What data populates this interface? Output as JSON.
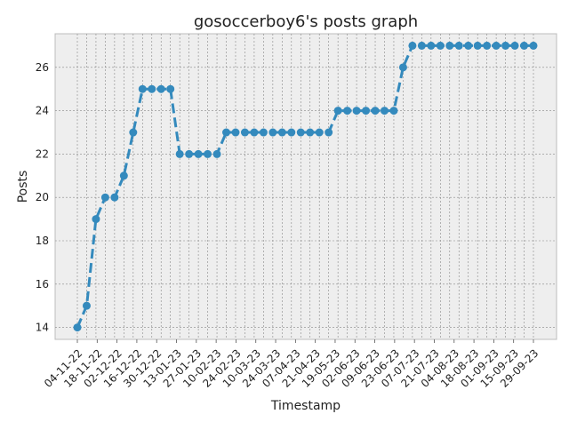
{
  "chart_data": {
    "type": "line",
    "title": "gosoccerboy6's posts graph",
    "xlabel": "Timestamp",
    "ylabel": "Posts",
    "ylim": [
      13.45,
      27.55
    ],
    "yticks": [
      14,
      16,
      18,
      20,
      22,
      24,
      26
    ],
    "grid": true,
    "x_tick_labels": [
      "04-11-22",
      "18-11-22",
      "02-12-22",
      "16-12-22",
      "30-12-22",
      "13-01-23",
      "27-01-23",
      "10-02-23",
      "24-02-23",
      "10-03-23",
      "24-03-23",
      "07-04-23",
      "21-04-23",
      "19-05-23",
      "02-06-23",
      "09-06-23",
      "23-06-23",
      "07-07-23",
      "21-07-23",
      "04-08-23",
      "18-08-23",
      "01-09-23",
      "15-09-23",
      "29-09-23"
    ],
    "series": [
      {
        "values": [
          14,
          15,
          19,
          20,
          20,
          21,
          23,
          25,
          25,
          25,
          25,
          22,
          22,
          22,
          22,
          22,
          23,
          23,
          23,
          23,
          23,
          23,
          23,
          23,
          23,
          23,
          23,
          23,
          24,
          24,
          24,
          24,
          24,
          24,
          24,
          26,
          27,
          27,
          27,
          27,
          27,
          27,
          27,
          27,
          27,
          27,
          27,
          27,
          27,
          27
        ]
      }
    ],
    "colors": {
      "line": "#348abd",
      "plot_bg": "#eeeeee",
      "grid": "#888888",
      "frame": "#bcbcbc"
    }
  }
}
